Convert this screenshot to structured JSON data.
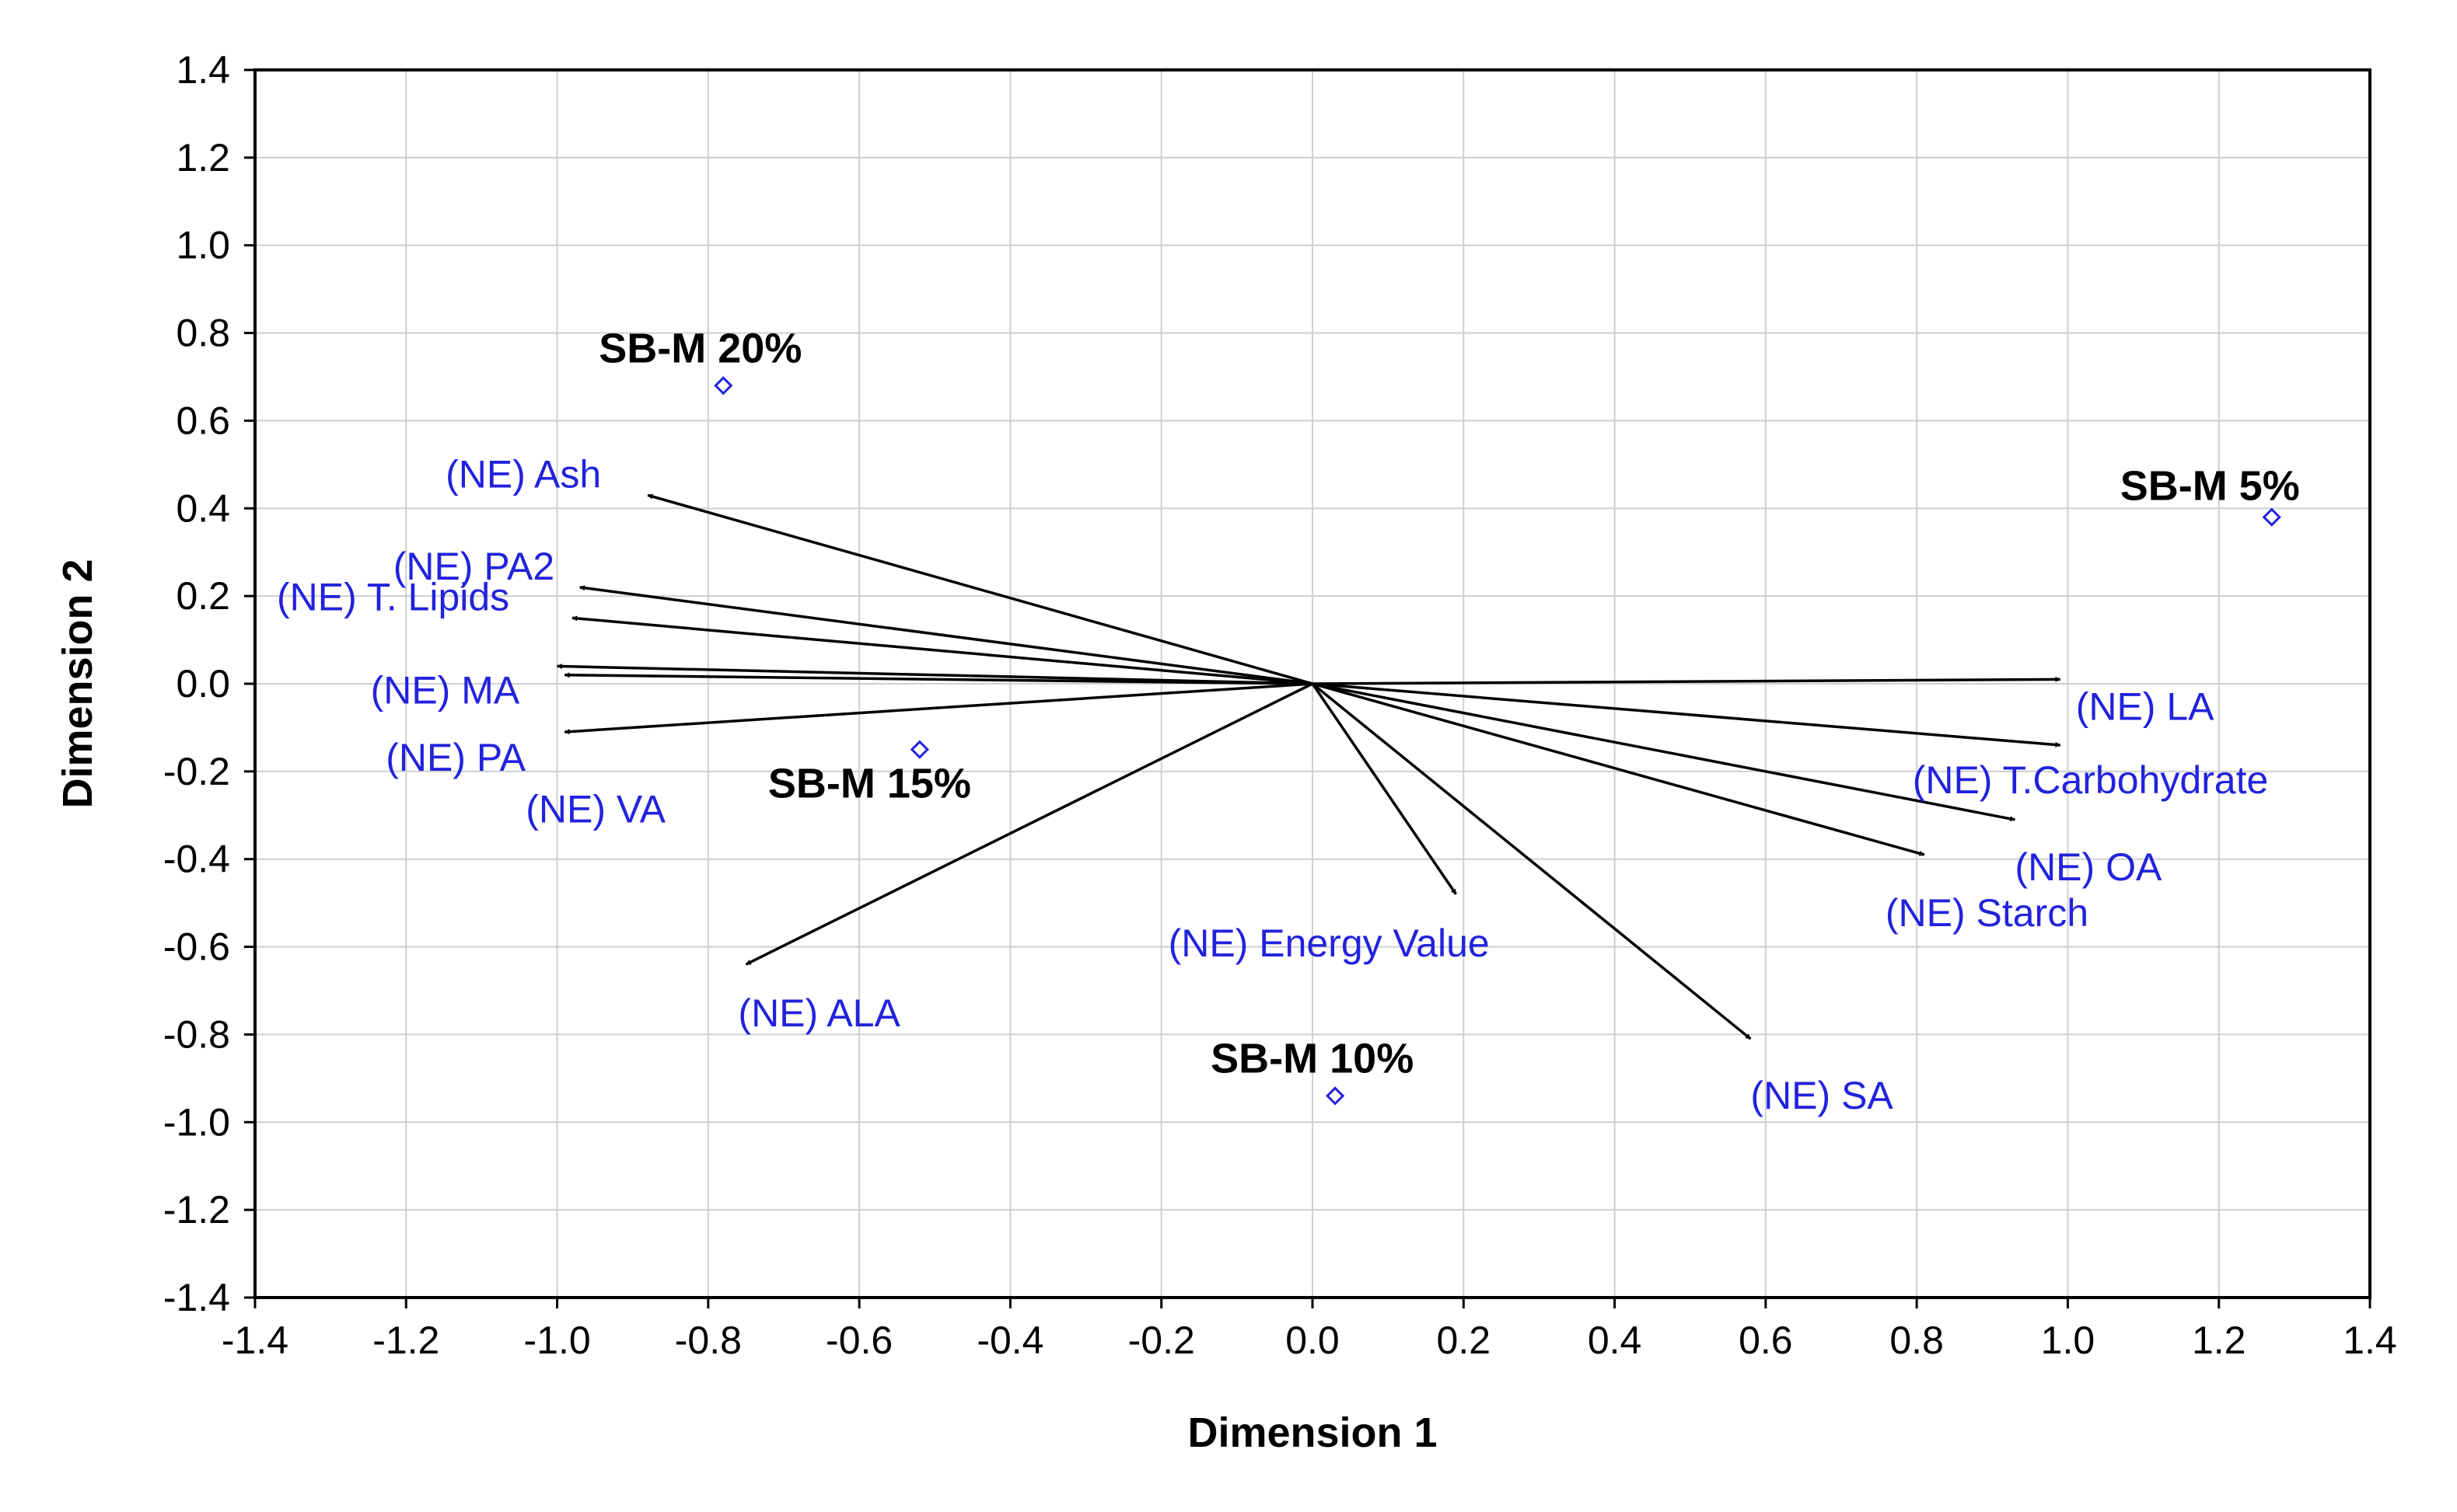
{
  "chart_data": {
    "type": "scatter",
    "subtype": "biplot",
    "title": "",
    "xlabel": "Dimension 1",
    "ylabel": "Dimension 2",
    "xlim": [
      -1.4,
      1.4
    ],
    "ylim": [
      -1.4,
      1.4
    ],
    "xticks": [
      "-1.4",
      "-1.2",
      "-1.0",
      "-0.8",
      "-0.6",
      "-0.4",
      "-0.2",
      "0.0",
      "0.2",
      "0.4",
      "0.6",
      "0.8",
      "1.0",
      "1.2",
      "1.4"
    ],
    "yticks": [
      "1.4",
      "1.2",
      "1.0",
      "0.8",
      "0.6",
      "0.4",
      "0.2",
      "0.0",
      "-0.2",
      "-0.4",
      "-0.6",
      "-0.8",
      "-1.0",
      "-1.2",
      "-1.4"
    ],
    "grid": true,
    "colors": {
      "variables": "#2222dd",
      "observations": "#000000",
      "arrows": "#000000",
      "markers": "#2222dd"
    },
    "variables": [
      {
        "label": "(NE) Ash",
        "x": -0.88,
        "y": 0.43
      },
      {
        "label": "(NE) PA2",
        "x": -0.97,
        "y": 0.22
      },
      {
        "label": "(NE) T. Lipids",
        "x": -0.98,
        "y": 0.15
      },
      {
        "label": "(NE) MA",
        "x": -1.0,
        "y": 0.04
      },
      {
        "label": "(NE) VA",
        "x": -0.99,
        "y": 0.02
      },
      {
        "label": "(NE) PA",
        "x": -0.99,
        "y": -0.11
      },
      {
        "label": "(NE) ALA",
        "x": -0.75,
        "y": -0.64
      },
      {
        "label": "(NE) Energy Value",
        "x": 0.19,
        "y": -0.48
      },
      {
        "label": "(NE) SA",
        "x": 0.58,
        "y": -0.81
      },
      {
        "label": "(NE) Starch",
        "x": 0.81,
        "y": -0.39
      },
      {
        "label": "(NE) OA",
        "x": 0.93,
        "y": -0.31
      },
      {
        "label": "(NE) T.Carbohydrate",
        "x": 0.99,
        "y": -0.14
      },
      {
        "label": "(NE) LA",
        "x": 0.99,
        "y": 0.01
      }
    ],
    "observations": [
      {
        "label": "SB-M 20%",
        "x": -0.78,
        "y": 0.68
      },
      {
        "label": "SB-M 5%",
        "x": 1.27,
        "y": 0.38
      },
      {
        "label": "SB-M 15%",
        "x": -0.52,
        "y": -0.15
      },
      {
        "label": "SB-M 10%",
        "x": 0.03,
        "y": -0.94
      }
    ]
  }
}
